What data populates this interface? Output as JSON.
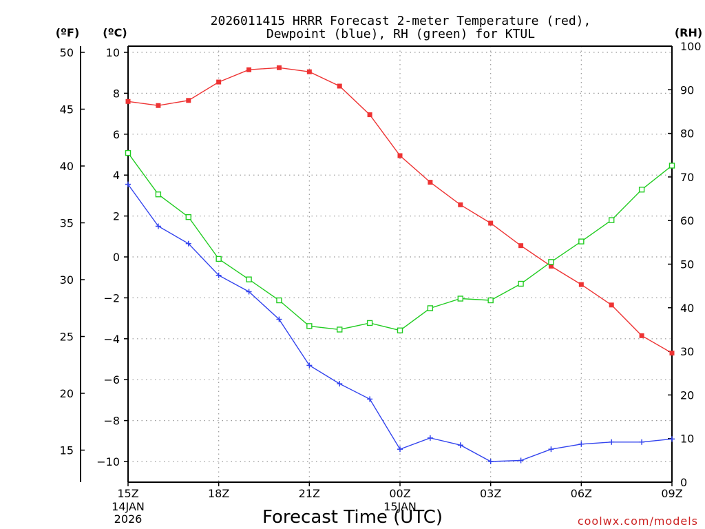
{
  "chart_data": {
    "type": "line",
    "title_line1": "2026011415 HRRR Forecast 2-meter Temperature (red),",
    "title_line2": "Dewpoint (blue), RH (green) for KTUL",
    "xlabel": "Forecast Time (UTC)",
    "credit": "coolwx.com/models",
    "unit_f": "(ºF)",
    "unit_c": "(ºC)",
    "unit_rh": "(RH)",
    "x_ticks": [
      {
        "hour": 0,
        "label": "15Z",
        "sub1": "14JAN",
        "sub2": "2026"
      },
      {
        "hour": 3,
        "label": "18Z",
        "sub1": "",
        "sub2": ""
      },
      {
        "hour": 6,
        "label": "21Z",
        "sub1": "",
        "sub2": ""
      },
      {
        "hour": 9,
        "label": "00Z",
        "sub1": "15JAN",
        "sub2": ""
      },
      {
        "hour": 12,
        "label": "03Z",
        "sub1": "",
        "sub2": ""
      },
      {
        "hour": 15,
        "label": "06Z",
        "sub1": "",
        "sub2": ""
      },
      {
        "hour": 18,
        "label": "09Z",
        "sub1": "",
        "sub2": ""
      }
    ],
    "x_range": [
      0,
      18
    ],
    "c_range": [
      -11,
      10.2
    ],
    "c_ticks": [
      10,
      8,
      6,
      4,
      2,
      0,
      -2,
      -4,
      -6,
      -8,
      -10
    ],
    "f_ticks": [
      50,
      45,
      40,
      35,
      30,
      25,
      20,
      15
    ],
    "rh_range": [
      0,
      100
    ],
    "rh_ticks": [
      100,
      90,
      80,
      70,
      60,
      50,
      40,
      30,
      20,
      10,
      0
    ],
    "series": [
      {
        "name": "Temperature",
        "unit": "C",
        "color": "#ee3333",
        "marker": "filled-square",
        "values": [
          7.6,
          7.4,
          7.65,
          8.55,
          9.15,
          9.25,
          9.05,
          8.35,
          6.95,
          4.95,
          3.65,
          2.55,
          1.65,
          0.55,
          -0.45,
          -1.35,
          -2.35,
          -3.85,
          -4.7
        ]
      },
      {
        "name": "Dewpoint",
        "unit": "C",
        "color": "#3344ee",
        "marker": "plus",
        "values": [
          3.55,
          1.5,
          0.65,
          -0.9,
          -1.7,
          -3.05,
          -5.3,
          -6.2,
          -6.95,
          -9.4,
          -8.85,
          -9.2,
          -10.0,
          -9.95,
          -9.4,
          -9.15,
          -9.05,
          -9.05,
          -8.9
        ]
      },
      {
        "name": "RH",
        "unit": "%",
        "color": "#22cc22",
        "marker": "open-square",
        "values": [
          75.5,
          66,
          60.8,
          51.2,
          46.5,
          41.7,
          35.8,
          35,
          36.5,
          34.8,
          39.9,
          42.1,
          41.7,
          45.5,
          50.5,
          55.2,
          60.1,
          67.1,
          72.6
        ]
      }
    ]
  }
}
